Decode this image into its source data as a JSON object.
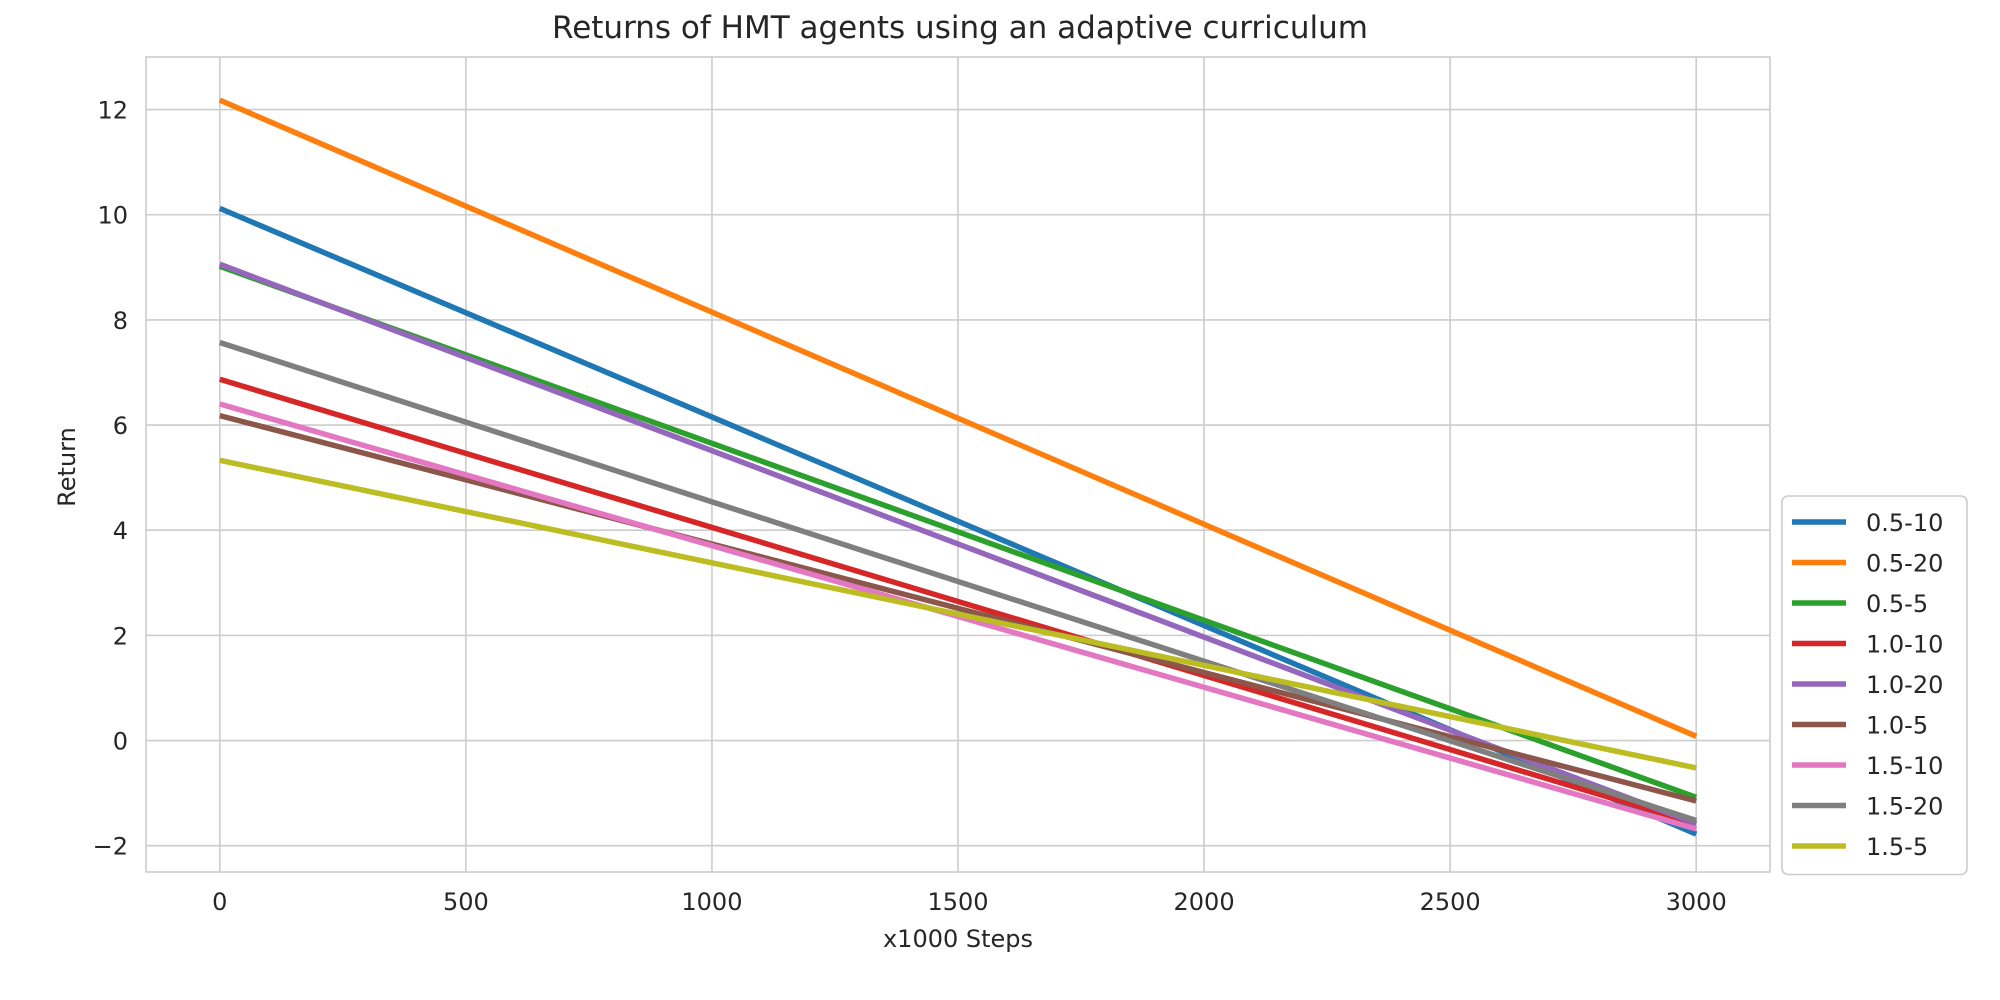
{
  "chart_data": {
    "type": "line",
    "title": "Returns of HMT agents using an adaptive curriculum",
    "xlabel": "x1000 Steps",
    "ylabel": "Return",
    "xlim": [
      -150,
      3150
    ],
    "ylim": [
      -2.5,
      13.0
    ],
    "xticks": [
      0,
      500,
      1000,
      1500,
      2000,
      2500,
      3000
    ],
    "yticks": [
      -2,
      0,
      2,
      4,
      6,
      8,
      10,
      12
    ],
    "ytick_labels": [
      "−2",
      "0",
      "2",
      "4",
      "6",
      "8",
      "10",
      "12"
    ],
    "grid": true,
    "legend_position": "right",
    "series": [
      {
        "name": "0.5-10",
        "color": "#1f77b4",
        "x": [
          0,
          3000
        ],
        "y": [
          10.12,
          -1.78
        ]
      },
      {
        "name": "0.5-20",
        "color": "#ff7f0e",
        "x": [
          0,
          3000
        ],
        "y": [
          12.18,
          0.08
        ]
      },
      {
        "name": "0.5-5",
        "color": "#2ca02c",
        "x": [
          0,
          3000
        ],
        "y": [
          9.02,
          -1.08
        ]
      },
      {
        "name": "1.0-10",
        "color": "#d62728",
        "x": [
          0,
          3000
        ],
        "y": [
          6.87,
          -1.58
        ]
      },
      {
        "name": "1.0-20",
        "color": "#9467bd",
        "x": [
          0,
          3000
        ],
        "y": [
          9.06,
          -1.58
        ]
      },
      {
        "name": "1.0-5",
        "color": "#8c564b",
        "x": [
          0,
          3000
        ],
        "y": [
          6.18,
          -1.15
        ]
      },
      {
        "name": "1.5-10",
        "color": "#e377c2",
        "x": [
          0,
          3000
        ],
        "y": [
          6.4,
          -1.68
        ]
      },
      {
        "name": "1.5-20",
        "color": "#7f7f7f",
        "x": [
          0,
          3000
        ],
        "y": [
          7.57,
          -1.52
        ]
      },
      {
        "name": "1.5-5",
        "color": "#bcbd22",
        "x": [
          0,
          3000
        ],
        "y": [
          5.33,
          -0.52
        ]
      }
    ]
  }
}
